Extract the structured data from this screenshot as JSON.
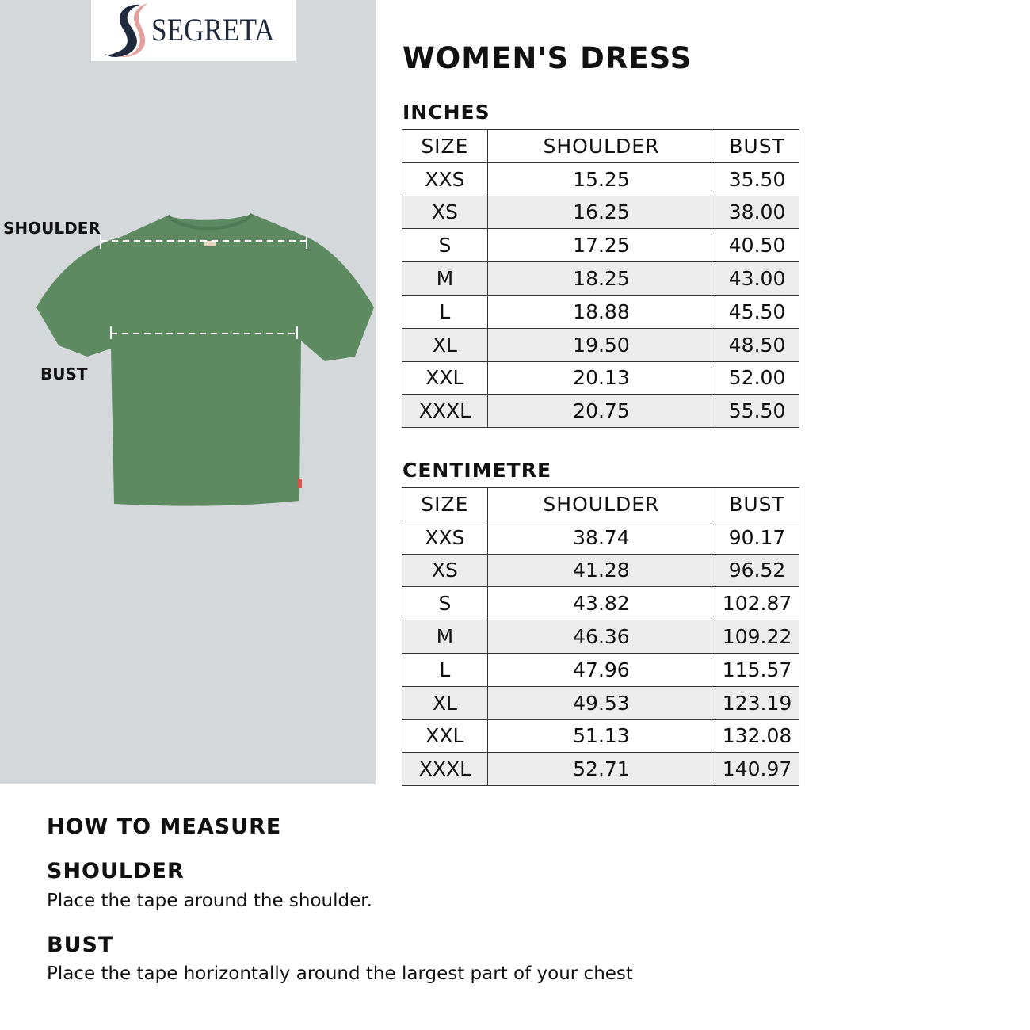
{
  "brand": {
    "name": "SEGRETA",
    "colors": {
      "navy": "#1f2a3c",
      "pink": "#e3a09c"
    }
  },
  "illustration": {
    "shoulder_label": "SHOULDER",
    "bust_label": "BUST",
    "garment_color": "#5e8a62",
    "background": "#d5d8db"
  },
  "title": "WOMEN'S DRESS",
  "inches": {
    "heading": "INCHES",
    "columns": [
      "SIZE",
      "SHOULDER",
      "BUST"
    ],
    "rows": [
      [
        "XXS",
        "15.25",
        "35.50"
      ],
      [
        "XS",
        "16.25",
        "38.00"
      ],
      [
        "S",
        "17.25",
        "40.50"
      ],
      [
        "M",
        "18.25",
        "43.00"
      ],
      [
        "L",
        "18.88",
        "45.50"
      ],
      [
        "XL",
        "19.50",
        "48.50"
      ],
      [
        "XXL",
        "20.13",
        "52.00"
      ],
      [
        "XXXL",
        "20.75",
        "55.50"
      ]
    ]
  },
  "centimetre": {
    "heading": "CENTIMETRE",
    "columns": [
      "SIZE",
      "SHOULDER",
      "BUST"
    ],
    "rows": [
      [
        "XXS",
        "38.74",
        "90.17"
      ],
      [
        "XS",
        "41.28",
        "96.52"
      ],
      [
        "S",
        "43.82",
        "102.87"
      ],
      [
        "M",
        "46.36",
        "109.22"
      ],
      [
        "L",
        "47.96",
        "115.57"
      ],
      [
        "XL",
        "49.53",
        "123.19"
      ],
      [
        "XXL",
        "51.13",
        "132.08"
      ],
      [
        "XXXL",
        "52.71",
        "140.97"
      ]
    ]
  },
  "how_to": {
    "heading": "HOW TO MEASURE",
    "shoulder": {
      "title": "SHOULDER",
      "text": "Place the tape around the shoulder."
    },
    "bust": {
      "title": "BUST",
      "text": "Place the tape horizontally around the largest part of your chest"
    }
  }
}
